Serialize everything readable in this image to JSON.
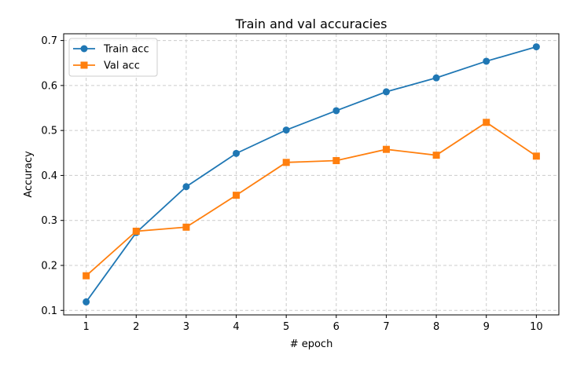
{
  "chart_data": {
    "type": "line",
    "title": "Train and val accuracies",
    "xlabel": "# epoch",
    "ylabel": "Accuracy",
    "x": [
      1,
      2,
      3,
      4,
      5,
      6,
      7,
      8,
      9,
      10
    ],
    "xticks": [
      "1",
      "2",
      "3",
      "4",
      "5",
      "6",
      "7",
      "8",
      "9",
      "10"
    ],
    "yticks": [
      "0.1",
      "0.2",
      "0.3",
      "0.4",
      "0.5",
      "0.6",
      "0.7"
    ],
    "ytick_values": [
      0.1,
      0.2,
      0.3,
      0.4,
      0.5,
      0.6,
      0.7
    ],
    "xlim": [
      0.55,
      10.45
    ],
    "ylim": [
      0.09,
      0.715
    ],
    "grid": true,
    "legend_position": "top-left",
    "series": [
      {
        "name": "Train acc",
        "marker": "circle",
        "color": "#1f77b4",
        "values": [
          0.119,
          0.273,
          0.375,
          0.449,
          0.501,
          0.544,
          0.586,
          0.617,
          0.654,
          0.686
        ]
      },
      {
        "name": "Val acc",
        "marker": "square",
        "color": "#ff7f0e",
        "values": [
          0.177,
          0.276,
          0.285,
          0.356,
          0.429,
          0.433,
          0.458,
          0.445,
          0.518,
          0.443
        ]
      }
    ]
  }
}
